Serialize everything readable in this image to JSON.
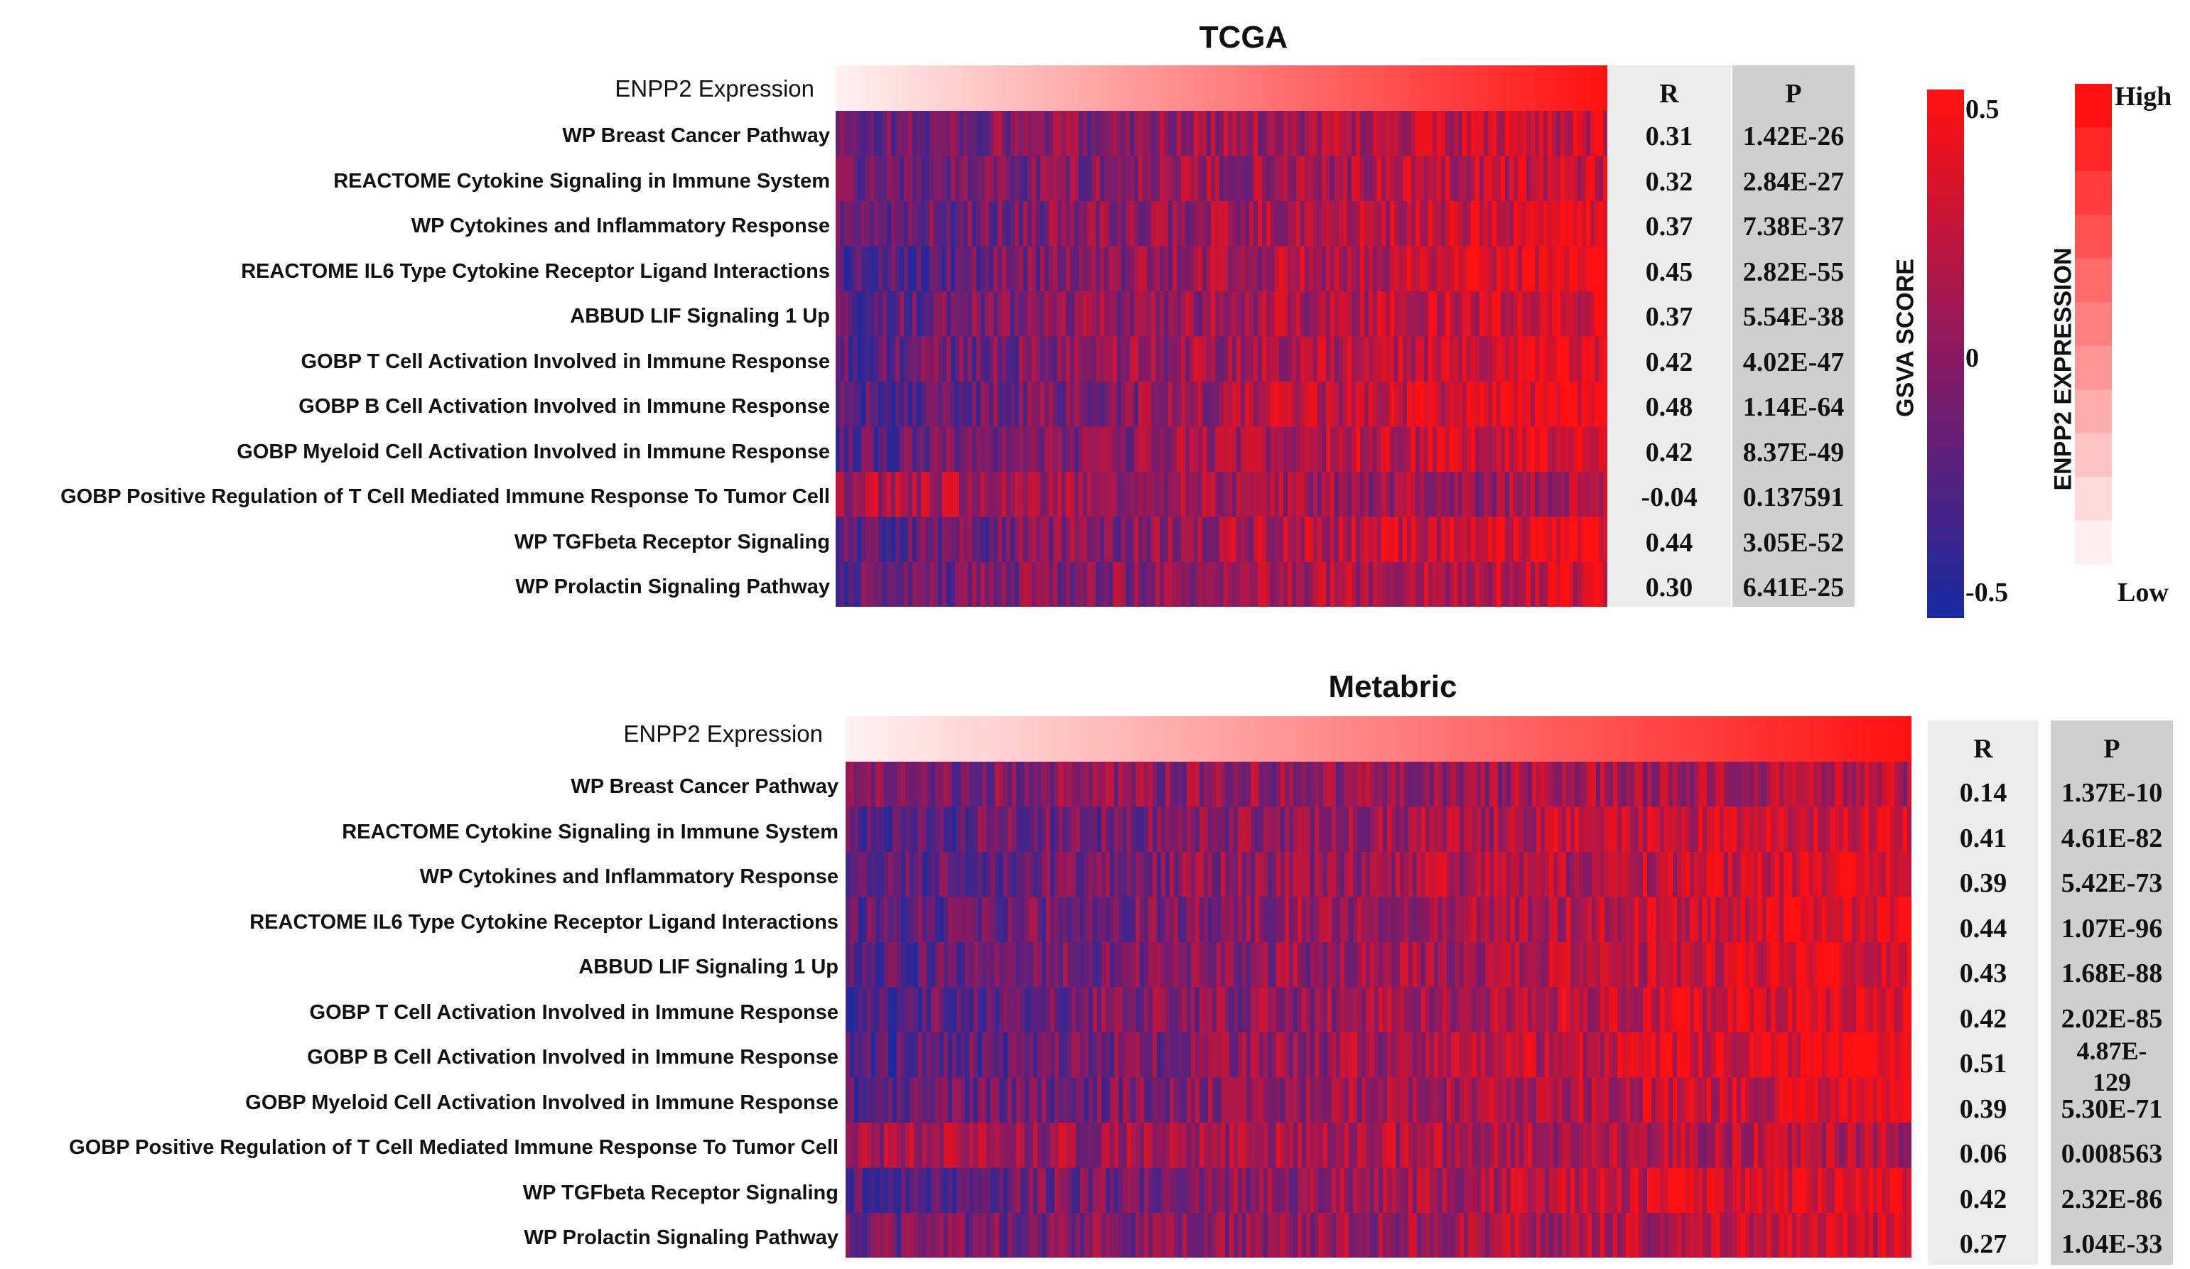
{
  "chart_data": [
    {
      "type": "heatmap",
      "title": "TCGA",
      "expression_row_label": "ENPP2 Expression",
      "row_labels": [
        "WP Breast Cancer Pathway",
        "REACTOME Cytokine Signaling in Immune System",
        "WP Cytokines and Inflammatory Response",
        "REACTOME IL6 Type Cytokine Receptor Ligand Interactions",
        "ABBUD LIF Signaling 1 Up",
        "GOBP T Cell Activation Involved in Immune Response",
        "GOBP B Cell Activation Involved in Immune Response",
        "GOBP Myeloid Cell Activation Involved in Immune Response",
        "GOBP Positive Regulation of T Cell Mediated Immune Response To Tumor Cell",
        "WP TGFbeta Receptor Signaling",
        "WP Prolactin Signaling Pathway"
      ],
      "r_header": "R",
      "p_header": "P",
      "R": [
        "0.31",
        "0.32",
        "0.37",
        "0.45",
        "0.37",
        "0.42",
        "0.48",
        "0.42",
        "-0.04",
        "0.44",
        "0.30"
      ],
      "P": [
        "1.42E-26",
        "2.84E-27",
        "7.38E-37",
        "2.82E-55",
        "5.54E-38",
        "4.02E-47",
        "1.14E-64",
        "8.37E-49",
        "0.137591",
        "3.05E-52",
        "6.41E-25"
      ]
    },
    {
      "type": "heatmap",
      "title": "Metabric",
      "expression_row_label": "ENPP2 Expression",
      "row_labels": [
        "WP Breast Cancer Pathway",
        "REACTOME Cytokine Signaling in Immune System",
        "WP Cytokines and Inflammatory Response",
        "REACTOME IL6 Type Cytokine Receptor Ligand Interactions",
        "ABBUD LIF Signaling 1 Up",
        "GOBP T Cell Activation Involved in Immune Response",
        "GOBP B Cell Activation Involved in Immune Response",
        "GOBP Myeloid Cell Activation Involved in Immune Response",
        "GOBP Positive Regulation of T Cell Mediated Immune Response To Tumor Cell",
        "WP TGFbeta Receptor Signaling",
        "WP Prolactin Signaling Pathway"
      ],
      "r_header": "R",
      "p_header": "P",
      "R": [
        "0.14",
        "0.41",
        "0.39",
        "0.44",
        "0.43",
        "0.42",
        "0.51",
        "0.39",
        "0.06",
        "0.42",
        "0.27"
      ],
      "P": [
        "1.37E-10",
        "4.61E-82",
        "5.42E-73",
        "1.07E-96",
        "1.68E-88",
        "2.02E-85",
        "4.87E-129",
        "5.30E-71",
        "0.008563",
        "2.32E-86",
        "1.04E-33"
      ]
    }
  ],
  "legend": {
    "gsva": {
      "title": "GSVA SCORE",
      "max_label": "0.5",
      "mid_label": "0",
      "min_label": "-0.5",
      "range": [
        -0.5,
        0.5
      ]
    },
    "expression": {
      "title": "ENPP2 EXPRESSION",
      "high_label": "High",
      "low_label": "Low",
      "steps": 11
    }
  },
  "colors": {
    "high": "#ff1010",
    "mid": "#8a1a60",
    "low": "#1a2aa0",
    "stat_r_bg": "#ececec",
    "stat_p_bg": "#cfcfcf"
  }
}
